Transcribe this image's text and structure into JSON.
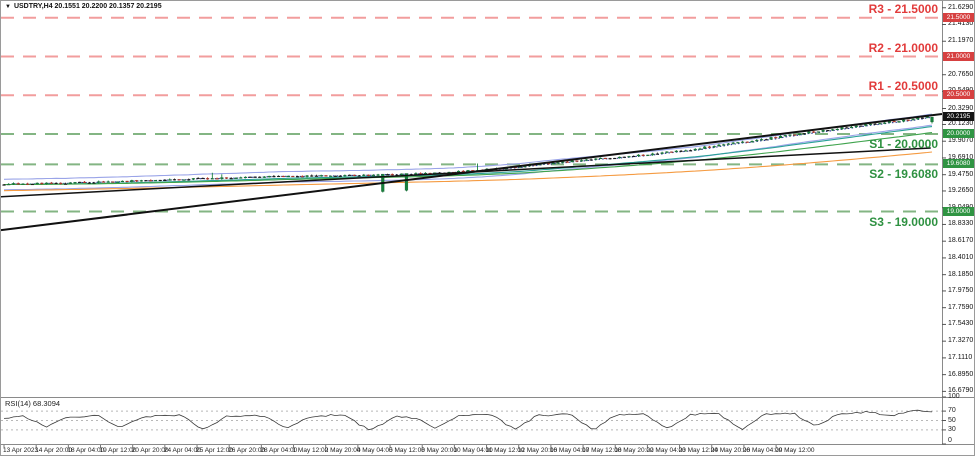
{
  "header": {
    "icon": "▼",
    "symbol_info": "USDTRY,H4 20.1551 20.2200 20.1357 20.2195"
  },
  "colors": {
    "resistance_line": "#f29d9d",
    "support_line": "#83b583",
    "resistance_text": "#e23b3b",
    "support_text": "#2e9141",
    "badge_resistance": "#d64040",
    "badge_support": "#2f9442",
    "badge_current": "#141414",
    "candle_up": "#17803c",
    "candle_down": "#c0392b",
    "candle_neutral": "#1c1c1c",
    "trendline": "#111111",
    "rsi_line": "#3a3a3a",
    "grid_dotted": "#b8b8b8",
    "envelope": "#9aa4e8",
    "ma_dotted": "#2c3e9e",
    "ma_teal": "#2aa198",
    "ma_green": "#3fa34d",
    "ma_slow": "#f59b42"
  },
  "levels": [
    {
      "id": "r3",
      "label": "R3 - 21.5000",
      "price": 21.5,
      "type": "resistance"
    },
    {
      "id": "r2",
      "label": "R2 - 21.0000",
      "price": 21.0,
      "type": "resistance"
    },
    {
      "id": "r1",
      "label": "R1 - 20.5000",
      "price": 20.5,
      "type": "resistance"
    },
    {
      "id": "s1",
      "label": "S1 - 20.0000",
      "price": 20.0,
      "type": "support"
    },
    {
      "id": "s2",
      "label": "S2 - 19.6080",
      "price": 19.608,
      "type": "support"
    },
    {
      "id": "s3",
      "label": "S3 - 19.0000",
      "price": 19.0,
      "type": "support"
    }
  ],
  "price_axis": {
    "ticks": [
      {
        "label": "21.6290",
        "price": 21.629
      },
      {
        "label": "21.4130",
        "price": 21.413
      },
      {
        "label": "21.1970",
        "price": 21.197
      },
      {
        "label": "20.7650",
        "price": 20.765
      },
      {
        "label": "20.5490",
        "price": 20.549
      },
      {
        "label": "20.3290",
        "price": 20.329
      },
      {
        "label": "20.1230",
        "price": 20.123
      },
      {
        "label": "19.9070",
        "price": 19.907
      },
      {
        "label": "19.6910",
        "price": 19.691
      },
      {
        "label": "19.4750",
        "price": 19.475
      },
      {
        "label": "19.2650",
        "price": 19.265
      },
      {
        "label": "19.0490",
        "price": 19.049
      },
      {
        "label": "18.8330",
        "price": 18.833
      },
      {
        "label": "18.6170",
        "price": 18.617
      },
      {
        "label": "18.4010",
        "price": 18.401
      },
      {
        "label": "18.1850",
        "price": 18.185
      },
      {
        "label": "17.9750",
        "price": 17.975
      },
      {
        "label": "17.7590",
        "price": 17.759
      },
      {
        "label": "17.5430",
        "price": 17.543
      },
      {
        "label": "17.3270",
        "price": 17.327
      },
      {
        "label": "17.1110",
        "price": 17.111
      },
      {
        "label": "16.8950",
        "price": 16.895
      },
      {
        "label": "16.6790",
        "price": 16.679
      }
    ],
    "badges": [
      {
        "label": "21.5000",
        "price": 21.5,
        "type": "resistance"
      },
      {
        "label": "21.0000",
        "price": 21.0,
        "type": "resistance"
      },
      {
        "label": "20.5000",
        "price": 20.5,
        "type": "resistance"
      },
      {
        "label": "20.2195",
        "price": 20.2195,
        "type": "current"
      },
      {
        "label": "20.0000",
        "price": 20.0,
        "type": "support"
      },
      {
        "label": "19.6080",
        "price": 19.608,
        "type": "support"
      },
      {
        "label": "19.0000",
        "price": 19.0,
        "type": "support"
      }
    ]
  },
  "time_axis": {
    "labels": [
      "13 Apr 2023",
      "14 Apr 20:00",
      "18 Apr 04:00",
      "19 Apr 12:00",
      "20 Apr 20:00",
      "24 Apr 04:00",
      "25 Apr 12:00",
      "26 Apr 20:00",
      "28 Apr 04:00",
      "1 May 12:00",
      "2 May 20:00",
      "4 May 04:00",
      "5 May 12:00",
      "8 May 20:00",
      "10 May 04:00",
      "11 May 12:00",
      "12 May 20:00",
      "16 May 04:00",
      "17 May 12:00",
      "18 May 20:00",
      "22 May 04:00",
      "23 May 12:00",
      "24 May 20:00",
      "26 May 04:00",
      "29 May 12:00"
    ]
  },
  "rsi_panel": {
    "label": "RSI(14) 68.3094",
    "scale": [
      "100",
      "70",
      "50",
      "30",
      "0"
    ],
    "scale_values": [
      100,
      70,
      50,
      30,
      0
    ],
    "level_lines": [
      70,
      50,
      30
    ],
    "last_value": 68.3094
  },
  "chart_data": {
    "type": "candlestick",
    "symbol": "USDTRY",
    "timeframe": "H4",
    "title": "USDTRY,H4",
    "ohlc_latest": {
      "open": 20.1551,
      "high": 20.22,
      "low": 20.1357,
      "close": 20.2195
    },
    "price_axis_range": [
      16.61,
      21.72
    ],
    "support_resistance": [
      {
        "name": "R3",
        "price": 21.5
      },
      {
        "name": "R2",
        "price": 21.0
      },
      {
        "name": "R1",
        "price": 20.5
      },
      {
        "name": "S1",
        "price": 20.0
      },
      {
        "name": "S2",
        "price": 19.608
      },
      {
        "name": "S3",
        "price": 19.0
      }
    ],
    "candle_count": 197,
    "price_path_anchors": [
      [
        0,
        19.355
      ],
      [
        0.05,
        19.362
      ],
      [
        0.11,
        19.385
      ],
      [
        0.16,
        19.402
      ],
      [
        0.22,
        19.428
      ],
      [
        0.27,
        19.443
      ],
      [
        0.33,
        19.458
      ],
      [
        0.38,
        19.468
      ],
      [
        0.42,
        19.475
      ],
      [
        0.46,
        19.495
      ],
      [
        0.5,
        19.525
      ],
      [
        0.54,
        19.558
      ],
      [
        0.58,
        19.615
      ],
      [
        0.62,
        19.66
      ],
      [
        0.66,
        19.7
      ],
      [
        0.7,
        19.748
      ],
      [
        0.74,
        19.8
      ],
      [
        0.77,
        19.858
      ],
      [
        0.8,
        19.9
      ],
      [
        0.83,
        19.955
      ],
      [
        0.86,
        20.01
      ],
      [
        0.89,
        20.06
      ],
      [
        0.92,
        20.105
      ],
      [
        0.95,
        20.155
      ],
      [
        0.975,
        20.185
      ],
      [
        1,
        20.24
      ]
    ],
    "spikes": {
      "lows": [
        {
          "t": 0.41,
          "low": 19.245
        },
        {
          "t": 0.434,
          "low": 19.26
        }
      ],
      "highs": [
        {
          "t": 0.225,
          "high": 19.5
        },
        {
          "t": 0.235,
          "high": 19.48
        },
        {
          "t": 0.51,
          "high": 19.62
        }
      ]
    },
    "trendlines": [
      {
        "name": "trendline-primary",
        "x1f": 0,
        "p1": 18.76,
        "x2f": 1.0,
        "p2": 20.258,
        "width": 2
      },
      {
        "name": "trendline-secondary",
        "x1f": 0,
        "p1": 19.19,
        "x2f": 0.988,
        "p2": 19.82,
        "width": 1.5
      }
    ],
    "overlays": [
      {
        "name": "envelope-upper",
        "period": 12,
        "offset": 0.0035,
        "style": "solid",
        "color_key": "envelope"
      },
      {
        "name": "envelope-lower",
        "period": 12,
        "offset": -0.0035,
        "style": "solid",
        "color_key": "envelope"
      },
      {
        "name": "ma-dotted-fast",
        "period": 5,
        "offset": 0,
        "style": "dotted",
        "color_key": "ma_dotted"
      },
      {
        "name": "ma-teal",
        "period": 34,
        "offset": 0,
        "style": "solid",
        "color_key": "ma_teal"
      },
      {
        "name": "ma-green",
        "period": 55,
        "offset": 0,
        "style": "solid",
        "color_key": "ma_green"
      },
      {
        "name": "ma-slow",
        "period": 160,
        "offset": 0,
        "seed_offset": -0.08,
        "style": "solid",
        "color_key": "ma_slow"
      }
    ],
    "rsi": {
      "period": 14,
      "last_value": 68.3094,
      "anchors": [
        [
          0,
          54
        ],
        [
          0.02,
          60
        ],
        [
          0.045,
          37
        ],
        [
          0.07,
          57
        ],
        [
          0.1,
          61
        ],
        [
          0.125,
          34
        ],
        [
          0.15,
          58
        ],
        [
          0.19,
          62
        ],
        [
          0.215,
          30
        ],
        [
          0.24,
          58
        ],
        [
          0.28,
          61
        ],
        [
          0.305,
          33
        ],
        [
          0.33,
          59
        ],
        [
          0.365,
          62
        ],
        [
          0.395,
          28
        ],
        [
          0.42,
          58
        ],
        [
          0.445,
          56
        ],
        [
          0.465,
          34
        ],
        [
          0.49,
          60
        ],
        [
          0.525,
          63
        ],
        [
          0.55,
          31
        ],
        [
          0.575,
          61
        ],
        [
          0.61,
          63
        ],
        [
          0.635,
          30
        ],
        [
          0.66,
          62
        ],
        [
          0.69,
          64
        ],
        [
          0.715,
          33
        ],
        [
          0.74,
          63
        ],
        [
          0.77,
          65
        ],
        [
          0.795,
          30
        ],
        [
          0.82,
          64
        ],
        [
          0.85,
          66
        ],
        [
          0.875,
          37
        ],
        [
          0.9,
          65
        ],
        [
          0.93,
          68
        ],
        [
          0.955,
          60
        ],
        [
          0.98,
          71
        ],
        [
          1,
          68.31
        ]
      ]
    }
  }
}
